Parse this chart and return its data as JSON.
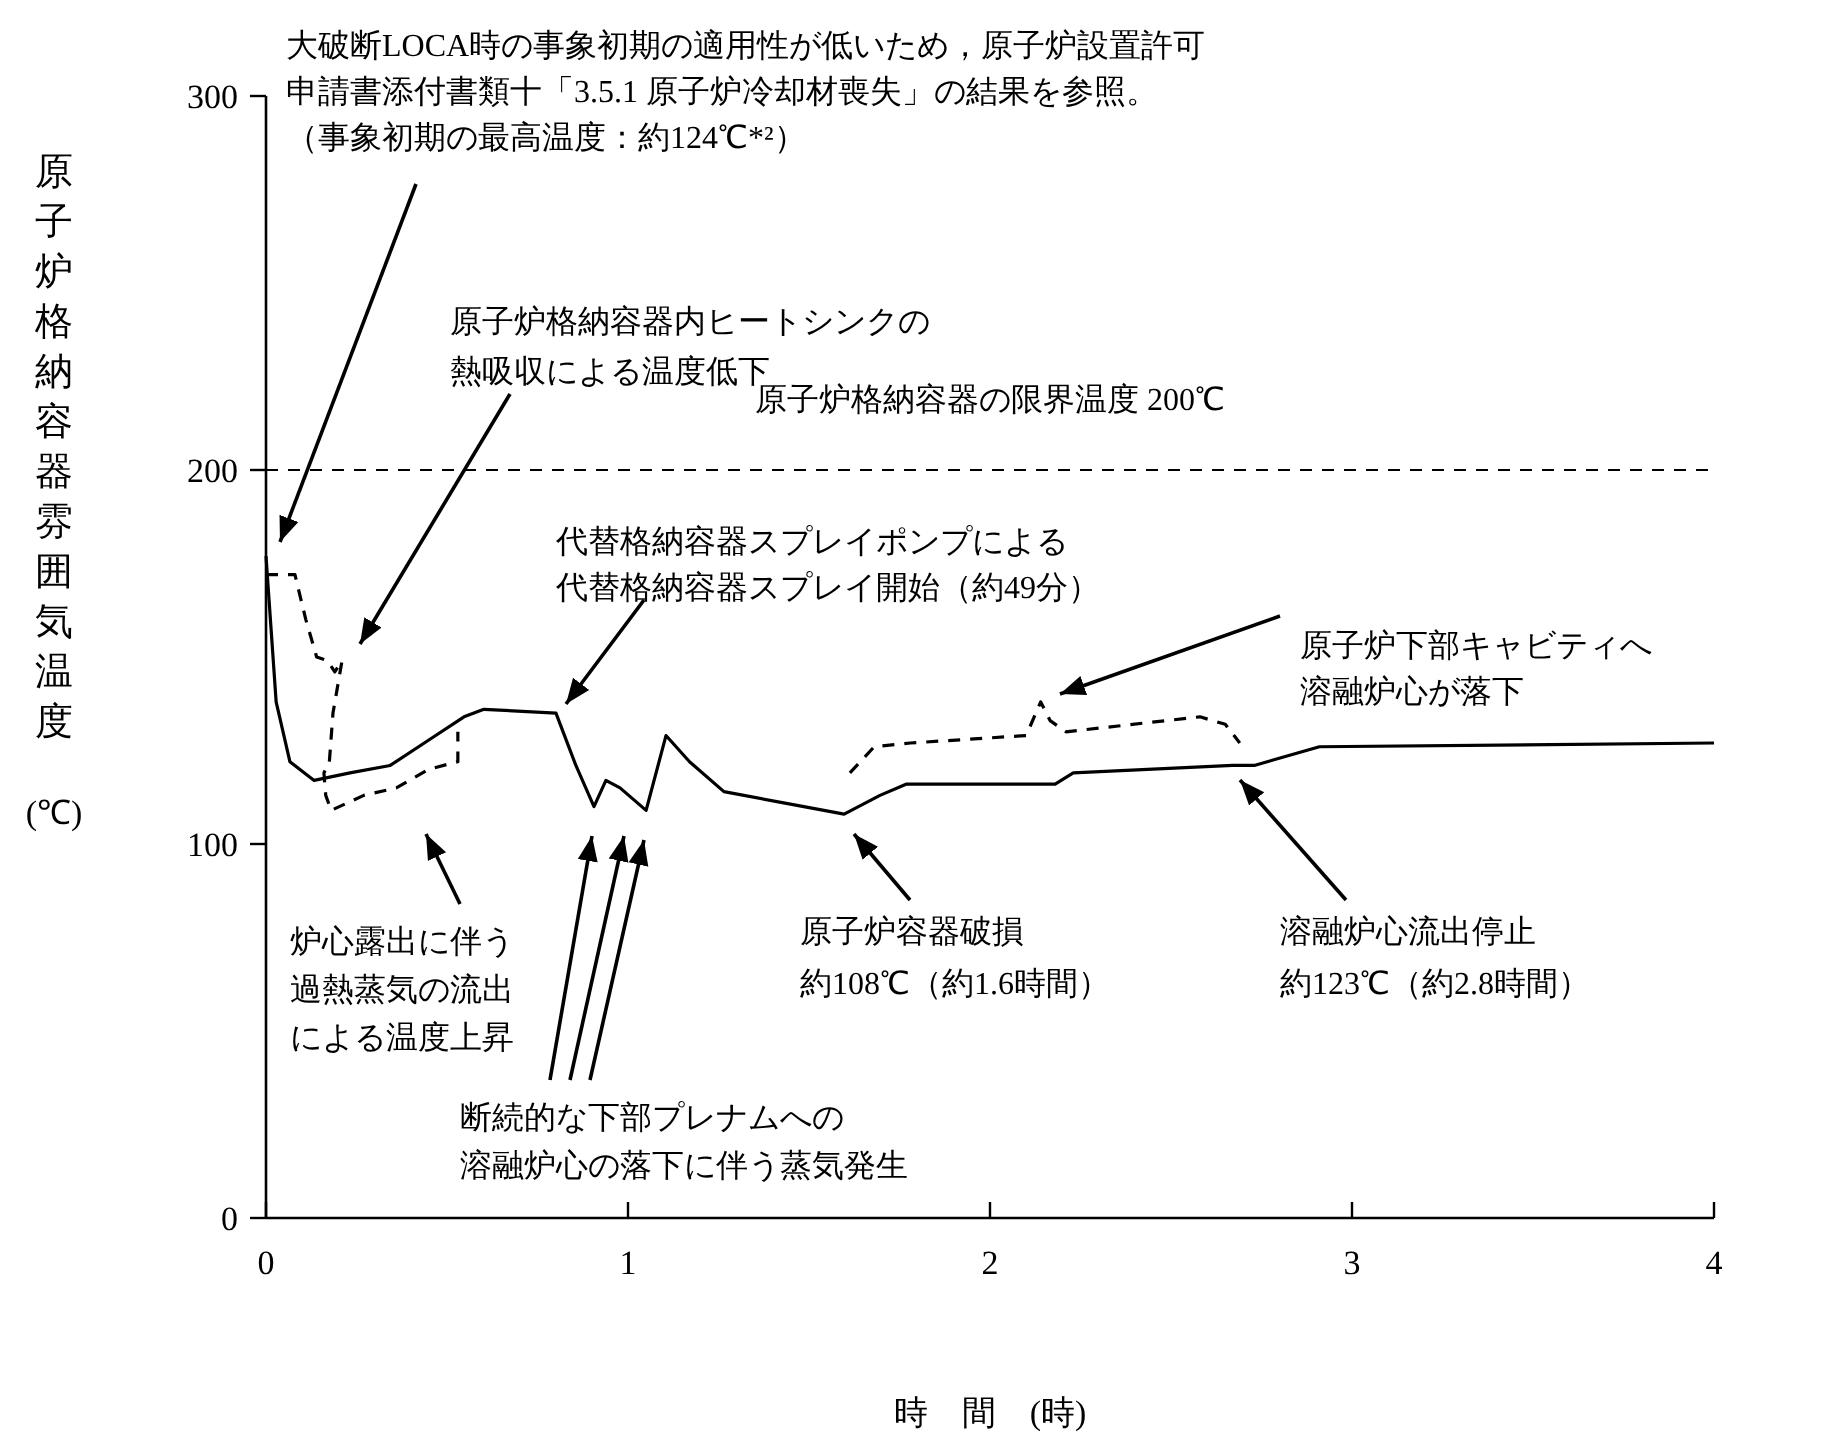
{
  "chart_data": {
    "type": "line",
    "xlabel": "時　間　(時)",
    "ylabel": "原子炉格納容器雰囲気温度\n(℃)",
    "xlim": [
      0,
      4
    ],
    "xticks": [
      0,
      1,
      2,
      3,
      4
    ],
    "ylim": [
      0,
      300
    ],
    "yticks": [
      0,
      100,
      200,
      300
    ],
    "grid": false,
    "series": [
      {
        "color": "#000000",
        "line_style": "solid",
        "x": [
          0,
          0.028,
          0.066,
          0.133,
          0.232,
          0.343,
          0.453,
          0.547,
          0.602,
          0.801,
          0.856,
          0.906,
          0.939,
          0.978,
          1.05,
          1.105,
          1.17,
          1.265,
          1.43,
          1.597,
          1.696,
          1.768,
          2.18,
          2.23,
          2.67,
          2.73,
          2.91,
          4.0
        ],
        "values": [
          177,
          138,
          122,
          117,
          119,
          121,
          128,
          134,
          136,
          135,
          121,
          110,
          117,
          115,
          109,
          129,
          122,
          114,
          111,
          108,
          113,
          116,
          116,
          119,
          121,
          121,
          126,
          127
        ]
      },
      {
        "color": "#000000",
        "line_style": "dashed",
        "x": [
          0,
          0.08,
          0.11,
          0.14,
          0.17,
          0.19,
          0.21,
          0.185,
          0.175,
          0.16,
          0.165,
          0.18,
          0.27,
          0.36,
          0.45,
          0.53,
          0.53
        ],
        "values": [
          172,
          172,
          160,
          150,
          149,
          146,
          149,
          135,
          122,
          119,
          113,
          109,
          113,
          115,
          120,
          122,
          130
        ]
      },
      {
        "color": "#000000",
        "line_style": "dashed",
        "x": [
          1.613,
          1.68,
          1.78,
          2.1,
          2.14,
          2.166,
          2.21,
          2.58,
          2.65,
          2.69
        ],
        "values": [
          119,
          126,
          127,
          129,
          138,
          133,
          130,
          134,
          132,
          127
        ]
      }
    ],
    "ref_lines": [
      {
        "axis": "y",
        "value": 200,
        "label": "原子炉格納容器の限界温度 200℃",
        "line_style": "dashed",
        "color": "#000000"
      }
    ],
    "annotations": [
      "大破断LOCA時の事象初期の適用性が低いため，原子炉設置許可申請書添付書類十「3.5.1 原子炉冷却材喪失」の結果を参照。（事象初期の最高温度：約124℃*²）",
      "原子炉格納容器内ヒートシンクの熱吸収による温度低下",
      "代替格納容器スプレイポンプによる代替格納容器スプレイ開始（約49分）",
      "原子炉下部キャビティへ溶融炉心が落下",
      "炉心露出に伴う過熱蒸気の流出による温度上昇",
      "断続的な下部プレナムへの溶融炉心の落下に伴う蒸気発生",
      "原子炉容器破損約108℃（約1.6時間）",
      "溶融炉心流出停止約123℃（約2.8時間）"
    ]
  }
}
